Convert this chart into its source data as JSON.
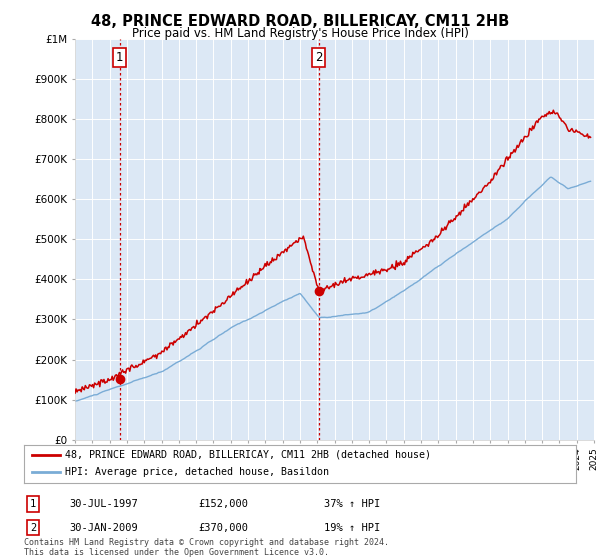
{
  "title": "48, PRINCE EDWARD ROAD, BILLERICAY, CM11 2HB",
  "subtitle": "Price paid vs. HM Land Registry's House Price Index (HPI)",
  "background_color": "#ffffff",
  "plot_bg_color": "#dce8f5",
  "grid_color": "#ffffff",
  "hpi_color": "#7aacd6",
  "price_color": "#cc0000",
  "ylim": [
    0,
    1000000
  ],
  "yticks": [
    0,
    100000,
    200000,
    300000,
    400000,
    500000,
    600000,
    700000,
    800000,
    900000,
    1000000
  ],
  "ytick_labels": [
    "£0",
    "£100K",
    "£200K",
    "£300K",
    "£400K",
    "£500K",
    "£600K",
    "£700K",
    "£800K",
    "£900K",
    "£1M"
  ],
  "sale1_year": 1997.58,
  "sale1_price": 152000,
  "sale1_label": "1",
  "sale2_year": 2009.08,
  "sale2_price": 370000,
  "sale2_label": "2",
  "legend_line1": "48, PRINCE EDWARD ROAD, BILLERICAY, CM11 2HB (detached house)",
  "legend_line2": "HPI: Average price, detached house, Basildon",
  "note1_label": "1",
  "note1_date": "30-JUL-1997",
  "note1_price": "£152,000",
  "note1_pct": "37% ↑ HPI",
  "note2_label": "2",
  "note2_date": "30-JAN-2009",
  "note2_price": "£370,000",
  "note2_pct": "19% ↑ HPI",
  "footer": "Contains HM Land Registry data © Crown copyright and database right 2024.\nThis data is licensed under the Open Government Licence v3.0.",
  "xmin": 1995,
  "xmax": 2025
}
